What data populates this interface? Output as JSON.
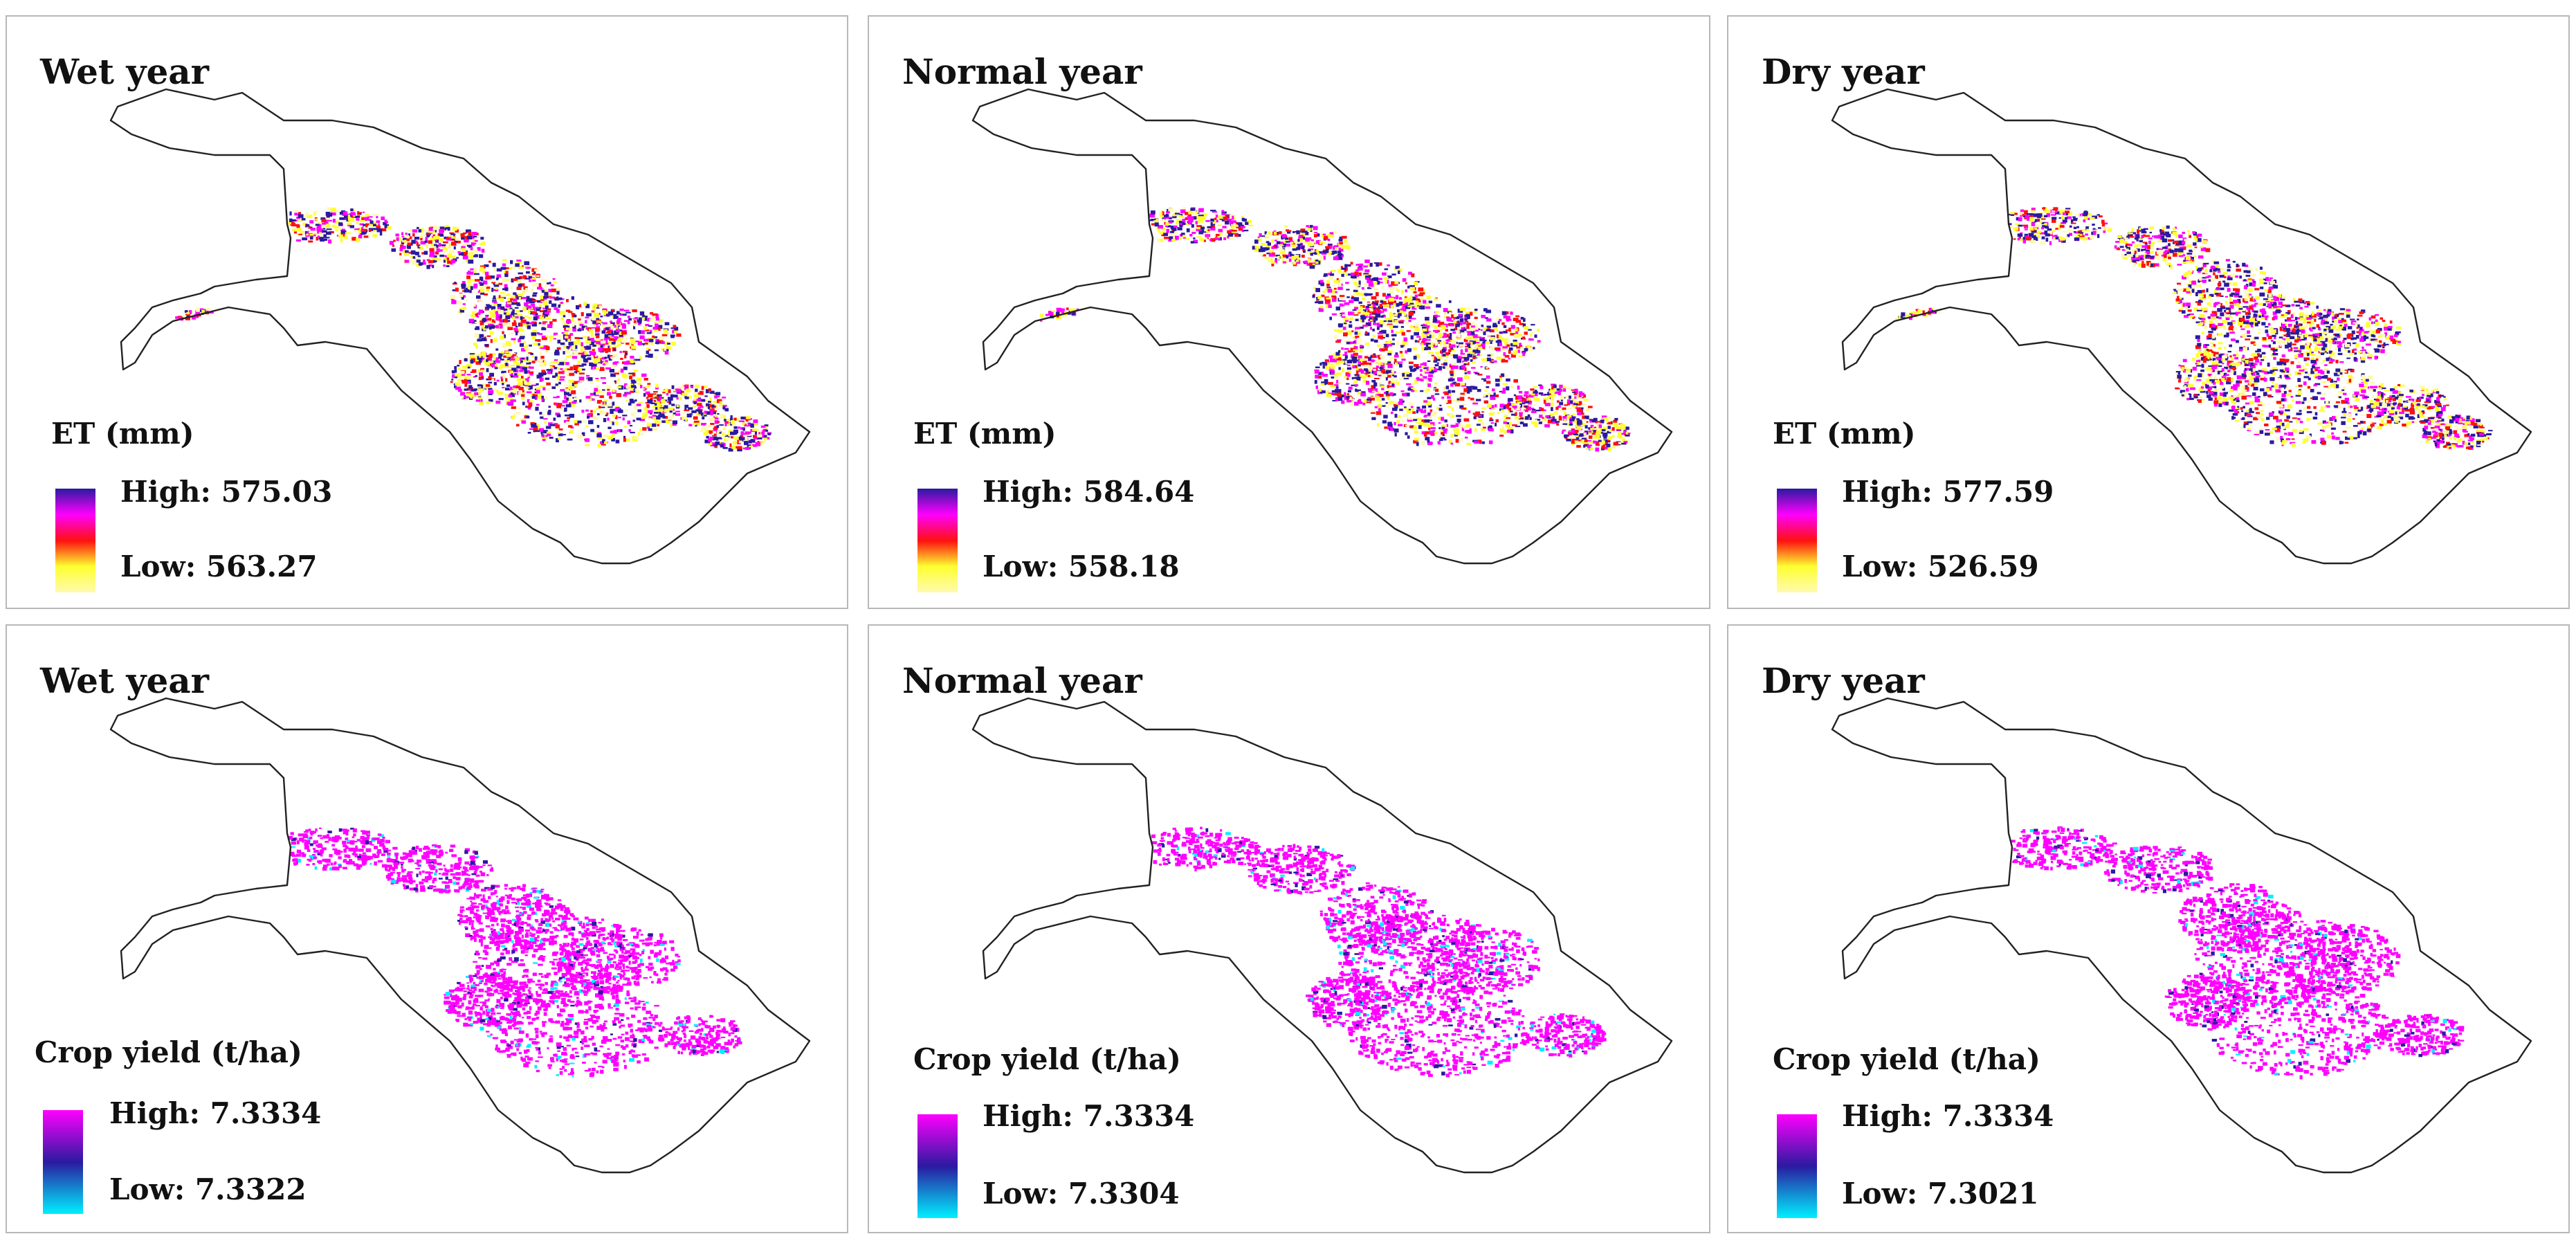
{
  "colors": {
    "et_ramp": [
      "#2a1aa0",
      "#ff00ff",
      "#ff1010",
      "#ffff30",
      "#fffab0"
    ],
    "yield_ramp": [
      "#ff00ff",
      "#2a1aa0",
      "#00f0ff"
    ]
  },
  "panels": [
    {
      "id": "et-wet",
      "title": "Wet year",
      "variable": "ET",
      "legend_title": "ET (mm)",
      "high_label": "High: 575.03",
      "low_label": "Low: 563.27"
    },
    {
      "id": "et-normal",
      "title": "Normal year",
      "variable": "ET",
      "legend_title": "ET (mm)",
      "high_label": "High: 584.64",
      "low_label": "Low: 558.18"
    },
    {
      "id": "et-dry",
      "title": "Dry year",
      "variable": "ET",
      "legend_title": "ET (mm)",
      "high_label": "High: 577.59",
      "low_label": "Low: 526.59"
    },
    {
      "id": "yield-wet",
      "title": "Wet year",
      "variable": "Crop yield",
      "legend_title": "Crop yield (t/ha)",
      "high_label": "High: 7.3334",
      "low_label": "Low: 7.3322"
    },
    {
      "id": "yield-normal",
      "title": "Normal year",
      "variable": "Crop yield",
      "legend_title": "Crop yield (t/ha)",
      "high_label": "High: 7.3334",
      "low_label": "Low: 7.3304"
    },
    {
      "id": "yield-dry",
      "title": "Dry year",
      "variable": "Crop yield",
      "legend_title": "Crop yield (t/ha)",
      "high_label": "High: 7.3334",
      "low_label": "Low: 7.3021"
    }
  ]
}
